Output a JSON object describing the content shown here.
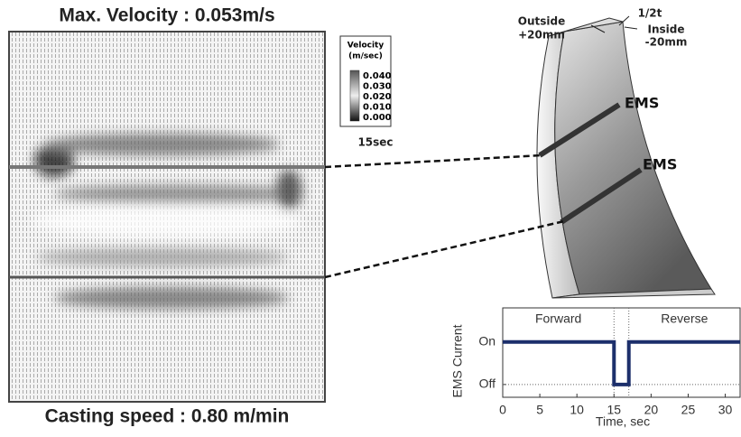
{
  "velocity_field": {
    "title": "Max. Velocity : 0.053m/s",
    "caption": "Casting speed : 0.80 m/min"
  },
  "legend": {
    "title_lines": [
      "Velocity",
      "(m/sec)"
    ],
    "labels": [
      "0.040",
      "0.030",
      "0.020",
      "0.010",
      "0.000"
    ],
    "time": "15sec"
  },
  "strand": {
    "labels": [
      "Outside",
      "+20mm",
      "1/2t",
      "Inside",
      "-20mm",
      "EMS",
      "EMS"
    ]
  },
  "chart_data": {
    "type": "line",
    "ylabel": "EMS Current",
    "xlabel": "Time, sec",
    "annotations": [
      "Forward",
      "Reverse"
    ],
    "xlim": [
      0,
      32
    ],
    "xticks": [
      0,
      5,
      10,
      15,
      20,
      25,
      30
    ],
    "ylim": [
      -0.3,
      1.8
    ],
    "yticks": [
      {
        "value": 0,
        "label": "Off"
      },
      {
        "value": 1,
        "label": "On"
      }
    ],
    "series": [
      {
        "color": "#1c2f6b",
        "x": [
          0,
          15,
          15,
          17,
          17,
          32
        ],
        "values": [
          1,
          1,
          0,
          0,
          1,
          1
        ]
      }
    ]
  }
}
